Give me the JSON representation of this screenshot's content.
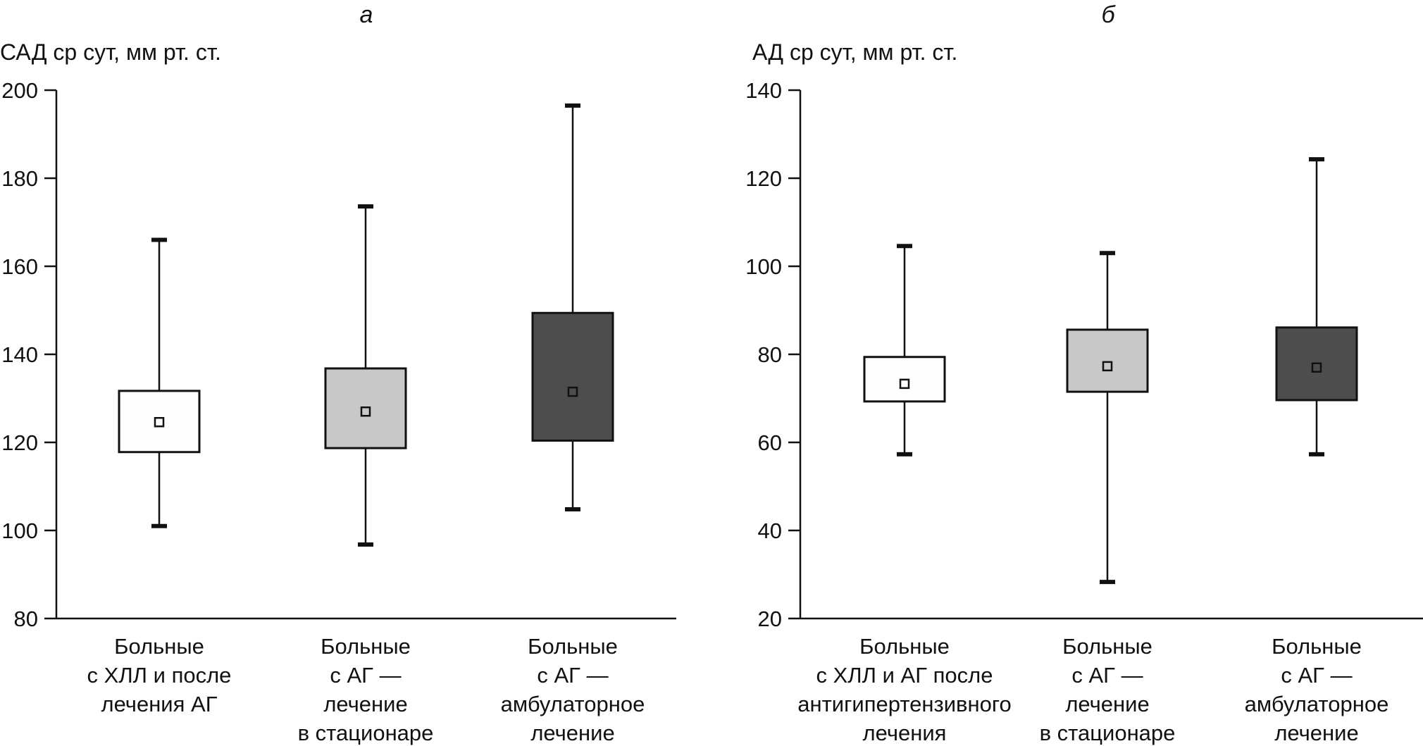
{
  "chart_data": [
    {
      "type": "boxplot",
      "panel_label": "а",
      "ylabel": "САД ср сут, мм рт. ст.",
      "xlabel": "",
      "ylim": [
        80,
        200
      ],
      "yticks": [
        80,
        100,
        120,
        140,
        160,
        180,
        200
      ],
      "grid": false,
      "categories": [
        [
          "Больные",
          "с ХЛЛ и после",
          "лечения АГ"
        ],
        [
          "Больные",
          "с АГ —",
          "лечение",
          "в стационаре"
        ],
        [
          "Больные",
          "с АГ —",
          "амбулаторное",
          "лечение"
        ]
      ],
      "series": [
        {
          "name": "Больные с ХЛЛ и после лечения АГ",
          "fill": "#fdfdfd",
          "whisker_low": 101,
          "box_low": 117.8,
          "mean": 124.6,
          "box_high": 131.7,
          "whisker_high": 166
        },
        {
          "name": "Больные с АГ — лечение в стационаре",
          "fill": "#c8c8c8",
          "whisker_low": 96.8,
          "box_low": 118.7,
          "mean": 127,
          "box_high": 136.8,
          "whisker_high": 173.6
        },
        {
          "name": "Больные с АГ — амбулаторное лечение",
          "fill": "#4d4d4d",
          "whisker_low": 104.8,
          "box_low": 120.4,
          "mean": 131.5,
          "box_high": 149.4,
          "whisker_high": 196.5
        }
      ]
    },
    {
      "type": "boxplot",
      "panel_label": "б",
      "ylabel": "АД ср сут, мм рт. ст.",
      "xlabel": "",
      "ylim": [
        20,
        140
      ],
      "yticks": [
        20,
        40,
        60,
        80,
        100,
        120,
        140
      ],
      "grid": false,
      "categories": [
        [
          "Больные",
          "с ХЛЛ и АГ после",
          "антигипертензивного",
          "лечения"
        ],
        [
          "Больные",
          "с АГ —",
          "лечение",
          "в стационаре"
        ],
        [
          "Больные",
          "с АГ —",
          "амбулаторное",
          "лечение"
        ]
      ],
      "series": [
        {
          "name": "Больные с ХЛЛ и АГ после антигипертензивного лечения",
          "fill": "#fdfdfd",
          "whisker_low": 57.3,
          "box_low": 69.3,
          "mean": 73.3,
          "box_high": 79.4,
          "whisker_high": 104.6
        },
        {
          "name": "Больные с АГ — лечение в стационаре",
          "fill": "#c8c8c8",
          "whisker_low": 28.3,
          "box_low": 71.5,
          "mean": 77.3,
          "box_high": 85.6,
          "whisker_high": 103
        },
        {
          "name": "Больные с АГ — амбулаторное лечение",
          "fill": "#4d4d4d",
          "whisker_low": 57.3,
          "box_low": 69.6,
          "mean": 77,
          "box_high": 86.1,
          "whisker_high": 124.3
        }
      ]
    }
  ]
}
